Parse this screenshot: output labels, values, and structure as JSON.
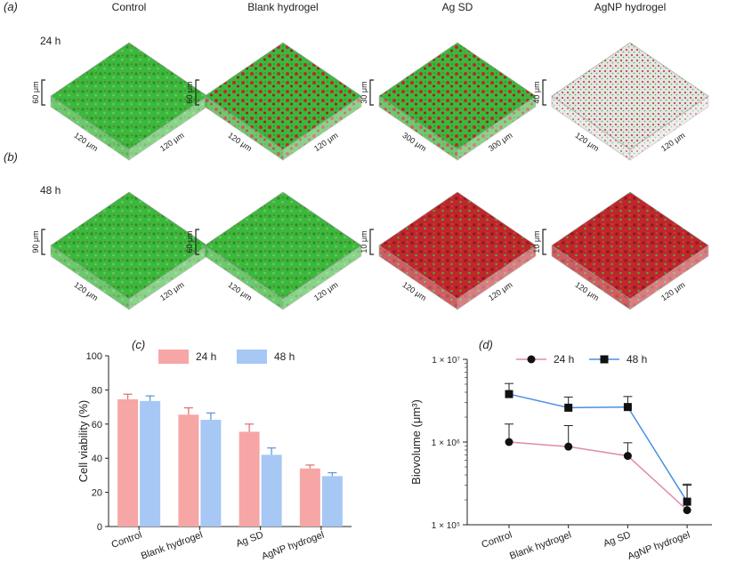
{
  "panels": {
    "a": "(a)",
    "b": "(b)",
    "c": "(c)",
    "d": "(d)"
  },
  "columns": [
    "Control",
    "Blank hydrogel",
    "Ag SD",
    "AgNP hydrogel"
  ],
  "rows": [
    {
      "label": "24 h",
      "images": [
        {
          "z": "60 μm",
          "x": "120 μm",
          "y": "120 μm"
        },
        {
          "z": "60 μm",
          "x": "120 μm",
          "y": "120 μm"
        },
        {
          "z": "30 μm",
          "x": "300 μm",
          "y": "300 μm"
        },
        {
          "z": "40 μm",
          "x": "120 μm",
          "y": "120 μm"
        }
      ]
    },
    {
      "label": "48 h",
      "images": [
        {
          "z": "90 μm",
          "x": "120 μm",
          "y": "120 μm"
        },
        {
          "z": "60 μm",
          "x": "120 μm",
          "y": "120 μm"
        },
        {
          "z": "10 μm",
          "x": "120 μm",
          "y": "120 μm"
        },
        {
          "z": "10 μm",
          "x": "120 μm",
          "y": "120 μm"
        }
      ]
    }
  ],
  "colors": {
    "live": "#3cb83c",
    "dead": "#c0272d",
    "bar24": "#f7a6a6",
    "bar48": "#a7c7f5",
    "line24": "#e08aa8",
    "line48": "#4a8fe0"
  },
  "chart_data": [
    {
      "type": "bar",
      "categories": [
        "Control",
        "Blank hydrogel",
        "Ag SD",
        "AgNP hydrogel"
      ],
      "series": [
        {
          "name": "24 h",
          "values": [
            74.5,
            65.5,
            55.5,
            34
          ],
          "errors": [
            3,
            4,
            4.5,
            2
          ]
        },
        {
          "name": "48 h",
          "values": [
            73.5,
            62.5,
            42,
            29.5
          ],
          "errors": [
            3,
            4,
            4,
            2
          ]
        }
      ],
      "ylabel": "Cell viability (%)",
      "ylim": [
        0,
        100
      ],
      "yticks": [
        0,
        20,
        40,
        60,
        80,
        100
      ],
      "legend": "top"
    },
    {
      "type": "line",
      "categories": [
        "Control",
        "Blank hydrogel",
        "Ag SD",
        "AgNP hydrogel"
      ],
      "series": [
        {
          "name": "24 h",
          "marker": "circle",
          "values": [
            1000000,
            880000,
            680000,
            150000
          ],
          "errors": [
            650000,
            700000,
            300000,
            150000
          ]
        },
        {
          "name": "48 h",
          "marker": "square",
          "values": [
            3800000,
            2600000,
            2650000,
            190000
          ],
          "errors": [
            1300000,
            900000,
            900000,
            120000
          ]
        }
      ],
      "ylabel": "Biovolume (μm³)",
      "yscale": "log",
      "ylim": [
        100000,
        10000000
      ],
      "yticks": [
        "1 × 10⁵",
        "1 × 10⁶",
        "1 × 10⁷"
      ],
      "legend": "top"
    }
  ]
}
